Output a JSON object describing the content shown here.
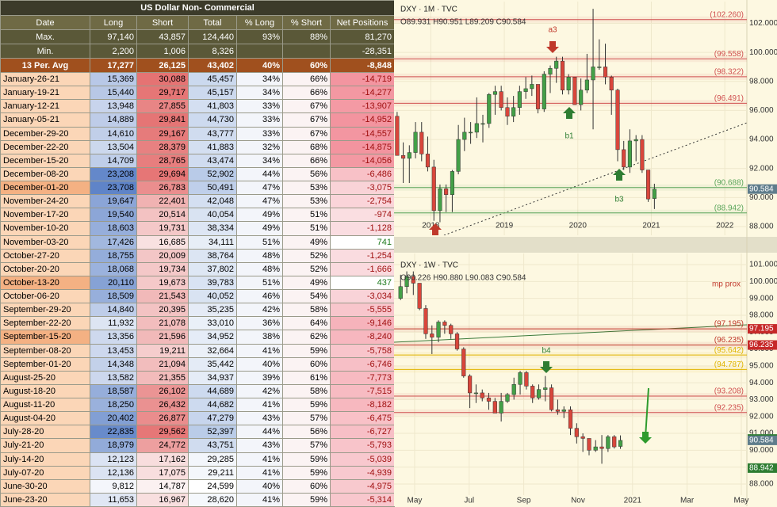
{
  "table": {
    "title": "US Dollar Non- Commercial",
    "headers": [
      "Date",
      "Long",
      "Short",
      "Total",
      "% Long",
      "% Short",
      "Net Positions"
    ],
    "summary_rows": [
      [
        "Max.",
        "97,140",
        "43,857",
        "124,440",
        "93%",
        "88%",
        "81,270"
      ],
      [
        "Min.",
        "2,200",
        "1,006",
        "8,326",
        null,
        null,
        "-28,351"
      ],
      [
        "13 Per. Avg",
        "17,277",
        "26,125",
        "43,402",
        "40%",
        "60%",
        "-8,848"
      ]
    ],
    "rows": [
      [
        "January-26-21",
        "15,369",
        "30,088",
        "45,457",
        "34%",
        "66%",
        "-14,719"
      ],
      [
        "January-19-21",
        "15,440",
        "29,717",
        "45,157",
        "34%",
        "66%",
        "-14,277"
      ],
      [
        "January-12-21",
        "13,948",
        "27,855",
        "41,803",
        "33%",
        "67%",
        "-13,907"
      ],
      [
        "January-05-21",
        "14,889",
        "29,841",
        "44,730",
        "33%",
        "67%",
        "-14,952"
      ],
      [
        "December-29-20",
        "14,610",
        "29,167",
        "43,777",
        "33%",
        "67%",
        "-14,557"
      ],
      [
        "December-22-20",
        "13,504",
        "28,379",
        "41,883",
        "32%",
        "68%",
        "-14,875"
      ],
      [
        "December-15-20",
        "14,709",
        "28,765",
        "43,474",
        "34%",
        "66%",
        "-14,056"
      ],
      [
        "December-08-20",
        "23,208",
        "29,694",
        "52,902",
        "44%",
        "56%",
        "-6,486"
      ],
      [
        "December-01-20",
        "23,708",
        "26,783",
        "50,491",
        "47%",
        "53%",
        "-3,075"
      ],
      [
        "November-24-20",
        "19,647",
        "22,401",
        "42,048",
        "47%",
        "53%",
        "-2,754"
      ],
      [
        "November-17-20",
        "19,540",
        "20,514",
        "40,054",
        "49%",
        "51%",
        "-974"
      ],
      [
        "November-10-20",
        "18,603",
        "19,731",
        "38,334",
        "49%",
        "51%",
        "-1,128"
      ],
      [
        "November-03-20",
        "17,426",
        "16,685",
        "34,111",
        "51%",
        "49%",
        "741"
      ],
      [
        "October-27-20",
        "18,755",
        "20,009",
        "38,764",
        "48%",
        "52%",
        "-1,254"
      ],
      [
        "October-20-20",
        "18,068",
        "19,734",
        "37,802",
        "48%",
        "52%",
        "-1,666"
      ],
      [
        "October-13-20",
        "20,110",
        "19,673",
        "39,783",
        "51%",
        "49%",
        "437"
      ],
      [
        "October-06-20",
        "18,509",
        "21,543",
        "40,052",
        "46%",
        "54%",
        "-3,034"
      ],
      [
        "September-29-20",
        "14,840",
        "20,395",
        "35,235",
        "42%",
        "58%",
        "-5,555"
      ],
      [
        "September-22-20",
        "11,932",
        "21,078",
        "33,010",
        "36%",
        "64%",
        "-9,146"
      ],
      [
        "September-15-20",
        "13,356",
        "21,596",
        "34,952",
        "38%",
        "62%",
        "-8,240"
      ],
      [
        "September-08-20",
        "13,453",
        "19,211",
        "32,664",
        "41%",
        "59%",
        "-5,758"
      ],
      [
        "September-01-20",
        "14,348",
        "21,094",
        "35,442",
        "40%",
        "60%",
        "-6,746"
      ],
      [
        "August-25-20",
        "13,582",
        "21,355",
        "34,937",
        "39%",
        "61%",
        "-7,773"
      ],
      [
        "August-18-20",
        "18,587",
        "26,102",
        "44,689",
        "42%",
        "58%",
        "-7,515"
      ],
      [
        "August-11-20",
        "18,250",
        "26,432",
        "44,682",
        "41%",
        "59%",
        "-8,182"
      ],
      [
        "August-04-20",
        "20,402",
        "26,877",
        "47,279",
        "43%",
        "57%",
        "-6,475"
      ],
      [
        "July-28-20",
        "22,835",
        "29,562",
        "52,397",
        "44%",
        "56%",
        "-6,727"
      ],
      [
        "July-21-20",
        "18,979",
        "24,772",
        "43,751",
        "43%",
        "57%",
        "-5,793"
      ],
      [
        "July-14-20",
        "12,123",
        "17,162",
        "29,285",
        "41%",
        "59%",
        "-5,039"
      ],
      [
        "July-07-20",
        "12,136",
        "17,075",
        "29,211",
        "41%",
        "59%",
        "-4,939"
      ],
      [
        "June-30-20",
        "9,812",
        "14,787",
        "24,599",
        "40%",
        "60%",
        "-4,975"
      ],
      [
        "June-23-20",
        "11,653",
        "16,967",
        "28,620",
        "41%",
        "59%",
        "-5,314"
      ]
    ]
  },
  "charts": [
    {
      "type": "candlestick",
      "title": "DXY · 1M · TVC",
      "ohlc_text": "O89.931 H90.951 L89.209 C90.584",
      "up_color": "#43a047",
      "down_color": "#d9463b",
      "x": [
        2017.542,
        2017.625,
        2017.708,
        2017.792,
        2017.875,
        2017.958,
        2018.042,
        2018.125,
        2018.208,
        2018.292,
        2018.375,
        2018.458,
        2018.542,
        2018.625,
        2018.708,
        2018.792,
        2018.875,
        2018.958,
        2019.042,
        2019.125,
        2019.208,
        2019.292,
        2019.375,
        2019.458,
        2019.542,
        2019.625,
        2019.708,
        2019.792,
        2019.875,
        2019.958,
        2020.042,
        2020.125,
        2020.208,
        2020.292,
        2020.375,
        2020.458,
        2020.542,
        2020.625,
        2020.708,
        2020.792,
        2020.875,
        2020.958,
        2021.042
      ],
      "ohlc": [
        [
          95.6,
          95.9,
          92.9,
          92.9
        ],
        [
          92.9,
          93.8,
          91.0,
          92.7
        ],
        [
          92.7,
          93.6,
          91.0,
          93.1
        ],
        [
          93.1,
          95.2,
          92.7,
          94.5
        ],
        [
          94.5,
          95.2,
          92.5,
          93.0
        ],
        [
          93.0,
          94.2,
          91.8,
          92.1
        ],
        [
          92.1,
          92.6,
          88.4,
          89.1
        ],
        [
          89.1,
          90.9,
          88.3,
          90.6
        ],
        [
          90.6,
          90.9,
          89.0,
          90.2
        ],
        [
          90.2,
          91.9,
          89.0,
          91.8
        ],
        [
          91.8,
          95.0,
          91.6,
          94.0
        ],
        [
          94.0,
          95.5,
          93.2,
          94.5
        ],
        [
          94.5,
          95.2,
          93.7,
          94.5
        ],
        [
          94.5,
          96.9,
          94.1,
          95.1
        ],
        [
          95.1,
          95.7,
          93.8,
          95.1
        ],
        [
          95.1,
          97.2,
          94.8,
          97.1
        ],
        [
          97.1,
          97.7,
          95.7,
          97.3
        ],
        [
          97.3,
          97.7,
          96.0,
          96.2
        ],
        [
          96.2,
          96.9,
          95.0,
          95.6
        ],
        [
          95.6,
          97.0,
          95.2,
          96.2
        ],
        [
          96.2,
          97.7,
          95.7,
          97.3
        ],
        [
          97.3,
          98.3,
          96.8,
          97.5
        ],
        [
          97.5,
          98.4,
          97.0,
          97.8
        ],
        [
          97.8,
          97.8,
          95.8,
          96.1
        ],
        [
          96.1,
          98.7,
          95.9,
          98.5
        ],
        [
          98.5,
          99.1,
          97.2,
          98.9
        ],
        [
          98.9,
          99.7,
          97.9,
          99.4
        ],
        [
          99.4,
          99.7,
          97.1,
          97.4
        ],
        [
          97.4,
          98.5,
          97.1,
          98.3
        ],
        [
          98.3,
          98.3,
          96.4,
          96.4
        ],
        [
          96.4,
          98.2,
          96.0,
          97.4
        ],
        [
          97.4,
          99.9,
          97.2,
          98.1
        ],
        [
          98.1,
          103.0,
          94.7,
          99.0
        ],
        [
          99.0,
          100.9,
          98.8,
          99.0
        ],
        [
          99.0,
          100.6,
          97.8,
          98.3
        ],
        [
          98.3,
          98.4,
          95.7,
          97.4
        ],
        [
          97.4,
          97.5,
          92.5,
          93.3
        ],
        [
          93.3,
          93.9,
          91.9,
          92.1
        ],
        [
          92.1,
          94.7,
          91.7,
          93.9
        ],
        [
          93.9,
          94.3,
          92.5,
          94.0
        ],
        [
          94.0,
          94.3,
          91.7,
          91.9
        ],
        [
          91.9,
          91.9,
          89.7,
          89.9
        ],
        [
          89.931,
          90.951,
          89.209,
          90.584
        ]
      ],
      "xlim": [
        2017.5,
        2022.3
      ],
      "xticks": [
        2018,
        2019,
        2020,
        2021,
        2022
      ],
      "ylim": [
        87.4,
        103.5
      ],
      "yticks": [
        {
          "value": 88,
          "label": "88.000"
        },
        {
          "value": 90,
          "label": "90.000"
        },
        {
          "value": 92,
          "label": "92.000"
        },
        {
          "value": 94,
          "label": "94.000"
        },
        {
          "value": 96,
          "label": "96.000"
        },
        {
          "value": 98,
          "label": "98.000"
        },
        {
          "value": 100,
          "label": "100.000"
        },
        {
          "value": 102,
          "label": "102.000"
        }
      ],
      "levels": [
        {
          "value": 102.26,
          "label": "(102.260)",
          "color": "#d05050"
        },
        {
          "value": 99.558,
          "label": "(99.558)",
          "color": "#d05050"
        },
        {
          "value": 98.322,
          "label": "(98.322)",
          "color": "#d05050"
        },
        {
          "value": 96.491,
          "label": "(96.491)",
          "color": "#d05050"
        },
        {
          "value": 90.688,
          "label": "(90.688)",
          "color": "#5aa55a"
        },
        {
          "value": 88.942,
          "label": "(88.942)",
          "color": "#5aa55a"
        }
      ],
      "price_tags": [
        {
          "value": 90.584,
          "color": "#5f7d8c"
        }
      ],
      "annotations": [
        "a3",
        "b1",
        "b3"
      ]
    },
    {
      "type": "candlestick",
      "title": "DXY · 1W · TVC",
      "ohlc_text": "O90.226 H90.880 L90.083 C90.584",
      "up_color": "#43a047",
      "down_color": "#d9463b",
      "x": [
        2020.29,
        2020.309,
        2020.329,
        2020.348,
        2020.367,
        2020.386,
        2020.406,
        2020.425,
        2020.444,
        2020.463,
        2020.483,
        2020.502,
        2020.521,
        2020.54,
        2020.56,
        2020.579,
        2020.598,
        2020.617,
        2020.637,
        2020.656,
        2020.675,
        2020.694,
        2020.713,
        2020.733,
        2020.752,
        2020.771,
        2020.79,
        2020.81,
        2020.829,
        2020.848,
        2020.867,
        2020.887,
        2020.906,
        2020.925,
        2020.944,
        2020.963
      ],
      "ohlc": [
        [
          99.0,
          100.4,
          98.9,
          99.7
        ],
        [
          99.7,
          100.6,
          99.3,
          100.3
        ],
        [
          100.3,
          100.6,
          99.2,
          99.9
        ],
        [
          99.9,
          99.9,
          98.3,
          98.4
        ],
        [
          98.4,
          98.6,
          96.6,
          96.9
        ],
        [
          96.9,
          97.4,
          95.7,
          96.7
        ],
        [
          96.7,
          97.7,
          96.4,
          97.6
        ],
        [
          97.6,
          97.7,
          96.9,
          97.4
        ],
        [
          97.4,
          97.5,
          96.6,
          96.9
        ],
        [
          96.9,
          97.0,
          95.9,
          96.0
        ],
        [
          96.0,
          96.1,
          94.3,
          94.4
        ],
        [
          94.4,
          94.5,
          92.5,
          93.4
        ],
        [
          93.4,
          93.9,
          92.8,
          93.4
        ],
        [
          93.4,
          93.6,
          92.9,
          93.1
        ],
        [
          93.1,
          93.4,
          92.4,
          92.9
        ],
        [
          92.9,
          93.1,
          92.2,
          92.2
        ],
        [
          92.2,
          93.4,
          91.7,
          92.9
        ],
        [
          92.9,
          93.4,
          92.8,
          93.3
        ],
        [
          93.3,
          94.3,
          93.0,
          93.9
        ],
        [
          93.9,
          94.7,
          93.3,
          94.6
        ],
        [
          94.6,
          94.7,
          93.6,
          93.8
        ],
        [
          93.8,
          93.9,
          92.8,
          93.1
        ],
        [
          93.1,
          93.9,
          93.0,
          93.6
        ],
        [
          93.6,
          94.4,
          92.9,
          93.7
        ],
        [
          93.7,
          93.9,
          92.3,
          92.4
        ],
        [
          92.4,
          93.0,
          92.1,
          92.3
        ],
        [
          92.3,
          92.6,
          91.9,
          92.4
        ],
        [
          92.4,
          92.6,
          90.9,
          91.3
        ],
        [
          91.3,
          91.6,
          90.4,
          90.8
        ],
        [
          90.8,
          91.0,
          89.9,
          90.7
        ],
        [
          90.7,
          90.7,
          89.7,
          90.0
        ],
        [
          90.0,
          90.6,
          89.9,
          90.2
        ],
        [
          90.2,
          90.9,
          89.2,
          90.1
        ],
        [
          90.1,
          90.9,
          89.9,
          90.8
        ],
        [
          90.8,
          90.9,
          90.1,
          90.2
        ],
        [
          90.226,
          90.88,
          90.083,
          90.584
        ]
      ],
      "xlim": [
        2020.27,
        2021.35
      ],
      "xticks": [
        {
          "value": 2020.333,
          "label": "May"
        },
        {
          "value": 2020.5,
          "label": "Jul"
        },
        {
          "value": 2020.667,
          "label": "Sep"
        },
        {
          "value": 2020.833,
          "label": "Nov"
        },
        {
          "value": 2021,
          "label": "2021"
        },
        {
          "value": 2021.167,
          "label": "Mar"
        },
        {
          "value": 2021.333,
          "label": "May"
        }
      ],
      "ylim": [
        87.34,
        101.66
      ],
      "yticks": [
        {
          "value": 88,
          "label": "88.000"
        },
        {
          "value": 89,
          "label": "89.000"
        },
        {
          "value": 90,
          "label": "90.000"
        },
        {
          "value": 91,
          "label": "91.000"
        },
        {
          "value": 92,
          "label": "92.000"
        },
        {
          "value": 93,
          "label": "93.000"
        },
        {
          "value": 94,
          "label": "94.000"
        },
        {
          "value": 95,
          "label": "95.000"
        },
        {
          "value": 96,
          "label": "96.000"
        },
        {
          "value": 97,
          "label": "97.000"
        },
        {
          "value": 98,
          "label": "98.000"
        },
        {
          "value": 99,
          "label": "99.000"
        },
        {
          "value": 100,
          "label": "100.000"
        },
        {
          "value": 101,
          "label": "101.000"
        }
      ],
      "levels": [
        {
          "value": 97.195,
          "label": "(97.195)",
          "color": "#c0392b"
        },
        {
          "value": 96.235,
          "label": "(96.235)",
          "color": "#c0392b"
        },
        {
          "value": 95.642,
          "label": "(95.642)",
          "color": "#e0b400"
        },
        {
          "value": 94.787,
          "label": "(94.787)",
          "color": "#e0b400"
        },
        {
          "value": 93.208,
          "label": "(93.208)",
          "color": "#d05050"
        },
        {
          "value": 92.235,
          "label": "(92.235)",
          "color": "#d05050"
        }
      ],
      "price_tags": [
        {
          "value": 97.195,
          "color": "#c62828"
        },
        {
          "value": 96.235,
          "color": "#c62828"
        },
        {
          "value": 90.667,
          "color": "#2e7d32"
        },
        {
          "value": 90.584,
          "color": "#5f7d8c"
        },
        {
          "value": 88.942,
          "color": "#2e7d32"
        }
      ],
      "annotations": [
        "b4",
        "mp prox"
      ]
    }
  ]
}
